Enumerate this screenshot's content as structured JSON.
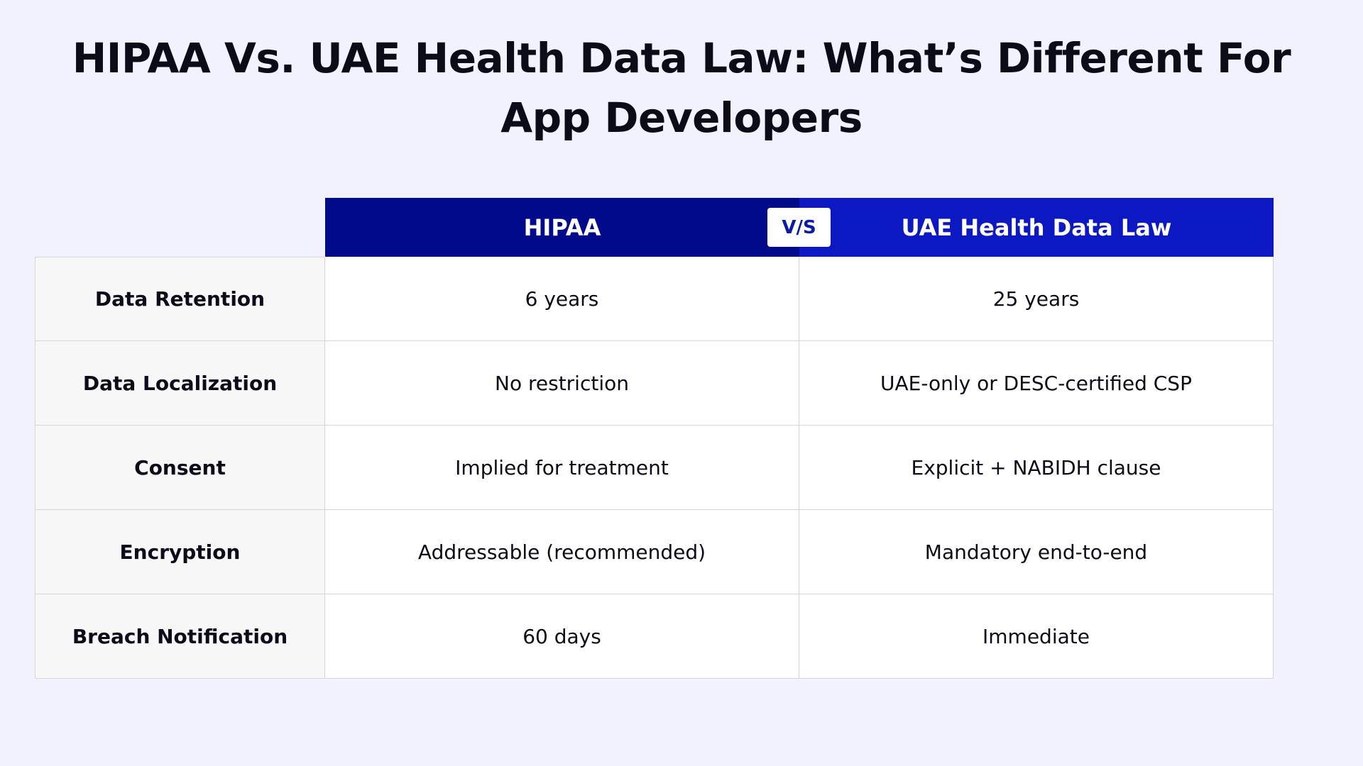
{
  "title": "HIPAA Vs. UAE Health Data Law: What’s Different For App Developers",
  "colors": {
    "background": "#f1f2fd",
    "hipaa_header": "#020a8c",
    "uae_header": "#0c19c3",
    "vs_text": "#0a1aa8"
  },
  "table": {
    "headers": [
      "HIPAA",
      "UAE Health Data Law"
    ],
    "vs_label": "V/S",
    "rows": [
      {
        "label": "Data Retention",
        "hipaa": "6 years",
        "uae": "25 years"
      },
      {
        "label": "Data Localization",
        "hipaa": "No restriction",
        "uae": "UAE-only or DESC-certified CSP"
      },
      {
        "label": "Consent",
        "hipaa": "Implied for treatment",
        "uae": "Explicit + NABIDH clause"
      },
      {
        "label": "Encryption",
        "hipaa": "Addressable (recommended)",
        "uae": "Mandatory end-to-end"
      },
      {
        "label": "Breach Notification",
        "hipaa": "60 days",
        "uae": "Immediate"
      }
    ]
  }
}
